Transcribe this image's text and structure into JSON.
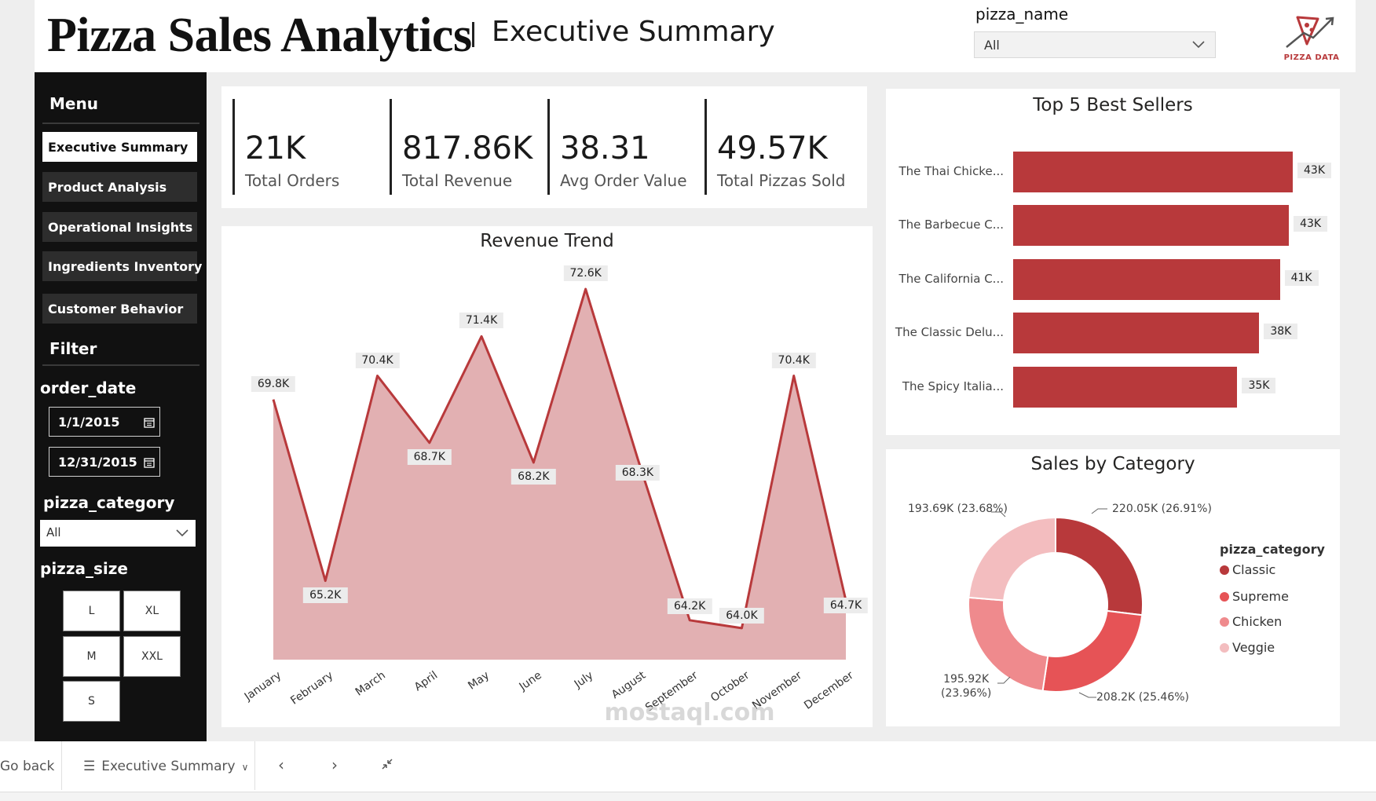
{
  "header": {
    "title": "Pizza Sales Analytics",
    "subtitle": "Executive Summary",
    "slicer": {
      "title": "pizza_name",
      "value": "All"
    },
    "logo_text": "PIZZA DATA"
  },
  "sidebar": {
    "menu_heading": "Menu",
    "nav": [
      {
        "label": "Executive Summary",
        "active": true
      },
      {
        "label": "Product Analysis",
        "active": false
      },
      {
        "label": "Operational Insights",
        "active": false
      },
      {
        "label": "Ingredients Inventory",
        "active": false
      },
      {
        "label": "Customer Behavior",
        "active": false
      }
    ],
    "filter_heading": "Filter",
    "order_date_label": "order_date",
    "date_start": "1/1/2015",
    "date_end": "12/31/2015",
    "category_label": "pizza_category",
    "category_value": "All",
    "size_label": "pizza_size",
    "sizes": [
      "L",
      "XL",
      "M",
      "XXL",
      "S"
    ]
  },
  "kpis": [
    {
      "value": "21K",
      "label": "Total Orders"
    },
    {
      "value": "817.86K",
      "label": "Total Revenue"
    },
    {
      "value": "38.31",
      "label": "Avg Order Value"
    },
    {
      "value": "49.57K",
      "label": "Total Pizzas Sold"
    }
  ],
  "revenue_trend": {
    "title": "Revenue Trend",
    "color": "#b8393b",
    "fill": "#e2b0b2"
  },
  "top5": {
    "title": "Top 5 Best Sellers",
    "color": "#b8393b"
  },
  "category_chart": {
    "title": "Sales by Category",
    "legend_title": "pizza_category"
  },
  "chart_data": [
    {
      "type": "area",
      "title": "Revenue Trend",
      "categories": [
        "January",
        "February",
        "March",
        "April",
        "May",
        "June",
        "July",
        "August",
        "September",
        "October",
        "November",
        "December"
      ],
      "values": [
        69.8,
        65.2,
        70.4,
        68.7,
        71.4,
        68.2,
        72.6,
        68.3,
        64.2,
        64.0,
        70.4,
        64.7
      ],
      "labels": [
        "69.8K",
        "65.2K",
        "70.4K",
        "68.7K",
        "71.4K",
        "68.2K",
        "72.6K",
        "68.3K",
        "64.2K",
        "64.0K",
        "70.4K",
        "64.7K"
      ],
      "ylim": [
        63.2,
        73.0
      ]
    },
    {
      "type": "bar",
      "title": "Top 5 Best Sellers",
      "categories": [
        "The Thai Chicke...",
        "The Barbecue C...",
        "The California C...",
        "The Classic Delu...",
        "The Spicy Italia..."
      ],
      "values": [
        43.4,
        42.8,
        41.4,
        38.2,
        34.8
      ],
      "labels": [
        "43K",
        "43K",
        "41K",
        "38K",
        "35K"
      ],
      "xlim": [
        0,
        43.4
      ]
    },
    {
      "type": "pie",
      "title": "Sales by Category",
      "slices": [
        {
          "name": "Classic",
          "value": 220.05,
          "label": "220.05K (26.91%)",
          "color": "#b8393b"
        },
        {
          "name": "Supreme",
          "value": 208.2,
          "label": "208.2K (25.46%)",
          "color": "#e65356"
        },
        {
          "name": "Chicken",
          "value": 195.92,
          "label_line1": "195.92K",
          "label_line2": "(23.96%)",
          "color": "#ef8a8d"
        },
        {
          "name": "Veggie",
          "value": 193.69,
          "label": "193.69K (23.68%)",
          "color": "#f3bdbf"
        }
      ]
    }
  ],
  "bottombar": {
    "back": "Go back",
    "page": "Executive Summary"
  },
  "watermark": "mostaql.com"
}
